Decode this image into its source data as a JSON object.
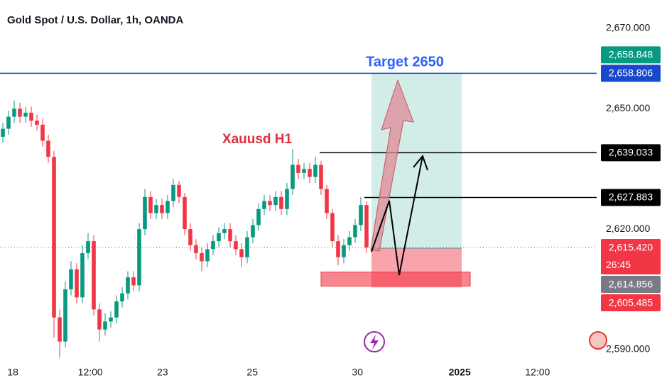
{
  "chart_data": {
    "type": "candlestick",
    "title": "Gold Spot / U.S. Dollar, 1h, OANDA",
    "annotations": {
      "label": "Xauusd H1",
      "target": "Target 2650"
    },
    "up_color": "#089981",
    "down_color": "#f23645",
    "open": [
      2643,
      2645,
      2648,
      2650,
      2648,
      2649,
      2647,
      2646,
      2642,
      2638,
      2598,
      2592,
      2605,
      2610,
      2603,
      2614,
      2617,
      2600,
      2595,
      2597,
      2598,
      2602,
      2604,
      2608,
      2606,
      2620,
      2628,
      2624,
      2626,
      2624,
      2627,
      2631,
      2628,
      2620,
      2616,
      2614,
      2612,
      2615,
      2617,
      2619,
      2620,
      2617,
      2615,
      2613,
      2618,
      2621,
      2625,
      2627,
      2626,
      2628,
      2625,
      2630,
      2636,
      2634,
      2635,
      2633,
      2636,
      2630,
      2624,
      2617,
      2613,
      2616,
      2618,
      2621,
      2626
    ],
    "high": [
      2646.5,
      2649.5,
      2652,
      2651.5,
      2650.5,
      2650.5,
      2648.5,
      2647.5,
      2643.5,
      2639.5,
      2600,
      2607,
      2612,
      2611.5,
      2616,
      2619,
      2618.5,
      2601.5,
      2599,
      2599.5,
      2603.5,
      2605.5,
      2609.5,
      2609.5,
      2621.5,
      2630,
      2629.5,
      2627.5,
      2627.5,
      2628.5,
      2632.5,
      2632,
      2629,
      2621.5,
      2617.5,
      2615.5,
      2616.5,
      2618.5,
      2620.5,
      2621.5,
      2621.5,
      2618.5,
      2616.5,
      2619.5,
      2622.5,
      2626.5,
      2628.5,
      2628.5,
      2629.5,
      2629.5,
      2631.5,
      2640,
      2637.5,
      2636.5,
      2636.5,
      2638,
      2637,
      2631,
      2625,
      2618.5,
      2617.5,
      2619.5,
      2622.5,
      2628,
      2627
    ],
    "low": [
      2641.5,
      2643.5,
      2646.5,
      2646.5,
      2646.5,
      2645.5,
      2644.5,
      2640.5,
      2636.5,
      2593,
      2588,
      2590.5,
      2603.5,
      2601.5,
      2601.5,
      2612.5,
      2598.5,
      2592,
      2593.5,
      2595.5,
      2596.5,
      2600.5,
      2602.5,
      2604.5,
      2604.5,
      2618.5,
      2622.5,
      2622.5,
      2622.5,
      2622.5,
      2625.5,
      2626.5,
      2618.5,
      2614.5,
      2612.5,
      2609.5,
      2610.5,
      2613.5,
      2615.5,
      2617.5,
      2615.5,
      2613.5,
      2610.5,
      2611.5,
      2616.5,
      2619.5,
      2623.5,
      2624.5,
      2624.5,
      2623.5,
      2623.5,
      2628.5,
      2632.5,
      2632.5,
      2631.5,
      2631.5,
      2628.5,
      2622.5,
      2615.5,
      2611,
      2611.5,
      2614.5,
      2616.5,
      2619.5,
      2614
    ],
    "close": [
      2645,
      2648,
      2650,
      2648,
      2649,
      2647,
      2646,
      2642,
      2638,
      2598,
      2592,
      2605,
      2610,
      2603,
      2614,
      2617,
      2600,
      2595,
      2597,
      2598,
      2602,
      2604,
      2608,
      2606,
      2620,
      2628,
      2624,
      2626,
      2624,
      2627,
      2631,
      2628,
      2620,
      2616,
      2614,
      2612,
      2615,
      2617,
      2619,
      2620,
      2617,
      2615,
      2613,
      2618,
      2621,
      2625,
      2627,
      2626,
      2628,
      2625,
      2630,
      2636,
      2634,
      2635,
      2633,
      2636,
      2630,
      2624,
      2617,
      2613,
      2616,
      2618,
      2621,
      2626,
      2615.4
    ],
    "xlim": [
      -0.5,
      104.5
    ],
    "xticks": [
      {
        "value": 1.75,
        "label": "18"
      },
      {
        "value": 15.4,
        "label": "12:00"
      },
      {
        "value": 28.1,
        "label": "23"
      },
      {
        "value": 43.9,
        "label": "25"
      },
      {
        "value": 62.4,
        "label": "30"
      },
      {
        "value": 80.4,
        "label": "2025"
      },
      {
        "value": 94.1,
        "label": "12:00"
      }
    ],
    "ylim": [
      2590,
      2670
    ],
    "yticks": [
      {
        "value": 2590,
        "label": "2,590.000"
      },
      {
        "value": 2620,
        "label": "2,620.000"
      },
      {
        "value": 2650,
        "label": "2,650.000"
      },
      {
        "value": 2670,
        "label": "2,670.000"
      }
    ],
    "grid": false,
    "price_tags": [
      {
        "value": 2658.848,
        "label": "2,658.848",
        "color": "#089981"
      },
      {
        "value": 2658.806,
        "label": "2,658.806",
        "color": "#1848cc"
      },
      {
        "value": 2639.033,
        "label": "2,639.033",
        "color": "#000000"
      },
      {
        "value": 2627.883,
        "label": "2,627.883",
        "color": "#000000"
      },
      {
        "value": 2615.42,
        "label": "2,615.420",
        "color": "#f23645",
        "countdown": "26:45"
      },
      {
        "value": 2614.856,
        "label": "2,614.856",
        "color": "#787b86"
      },
      {
        "value": 2605.485,
        "label": "2,605.485",
        "color": "#f23645"
      }
    ],
    "position": {
      "target": 2658.806,
      "entry": 2615.2,
      "stop": 2605.485
    },
    "zone": [
      2609.3,
      2605.8
    ]
  }
}
